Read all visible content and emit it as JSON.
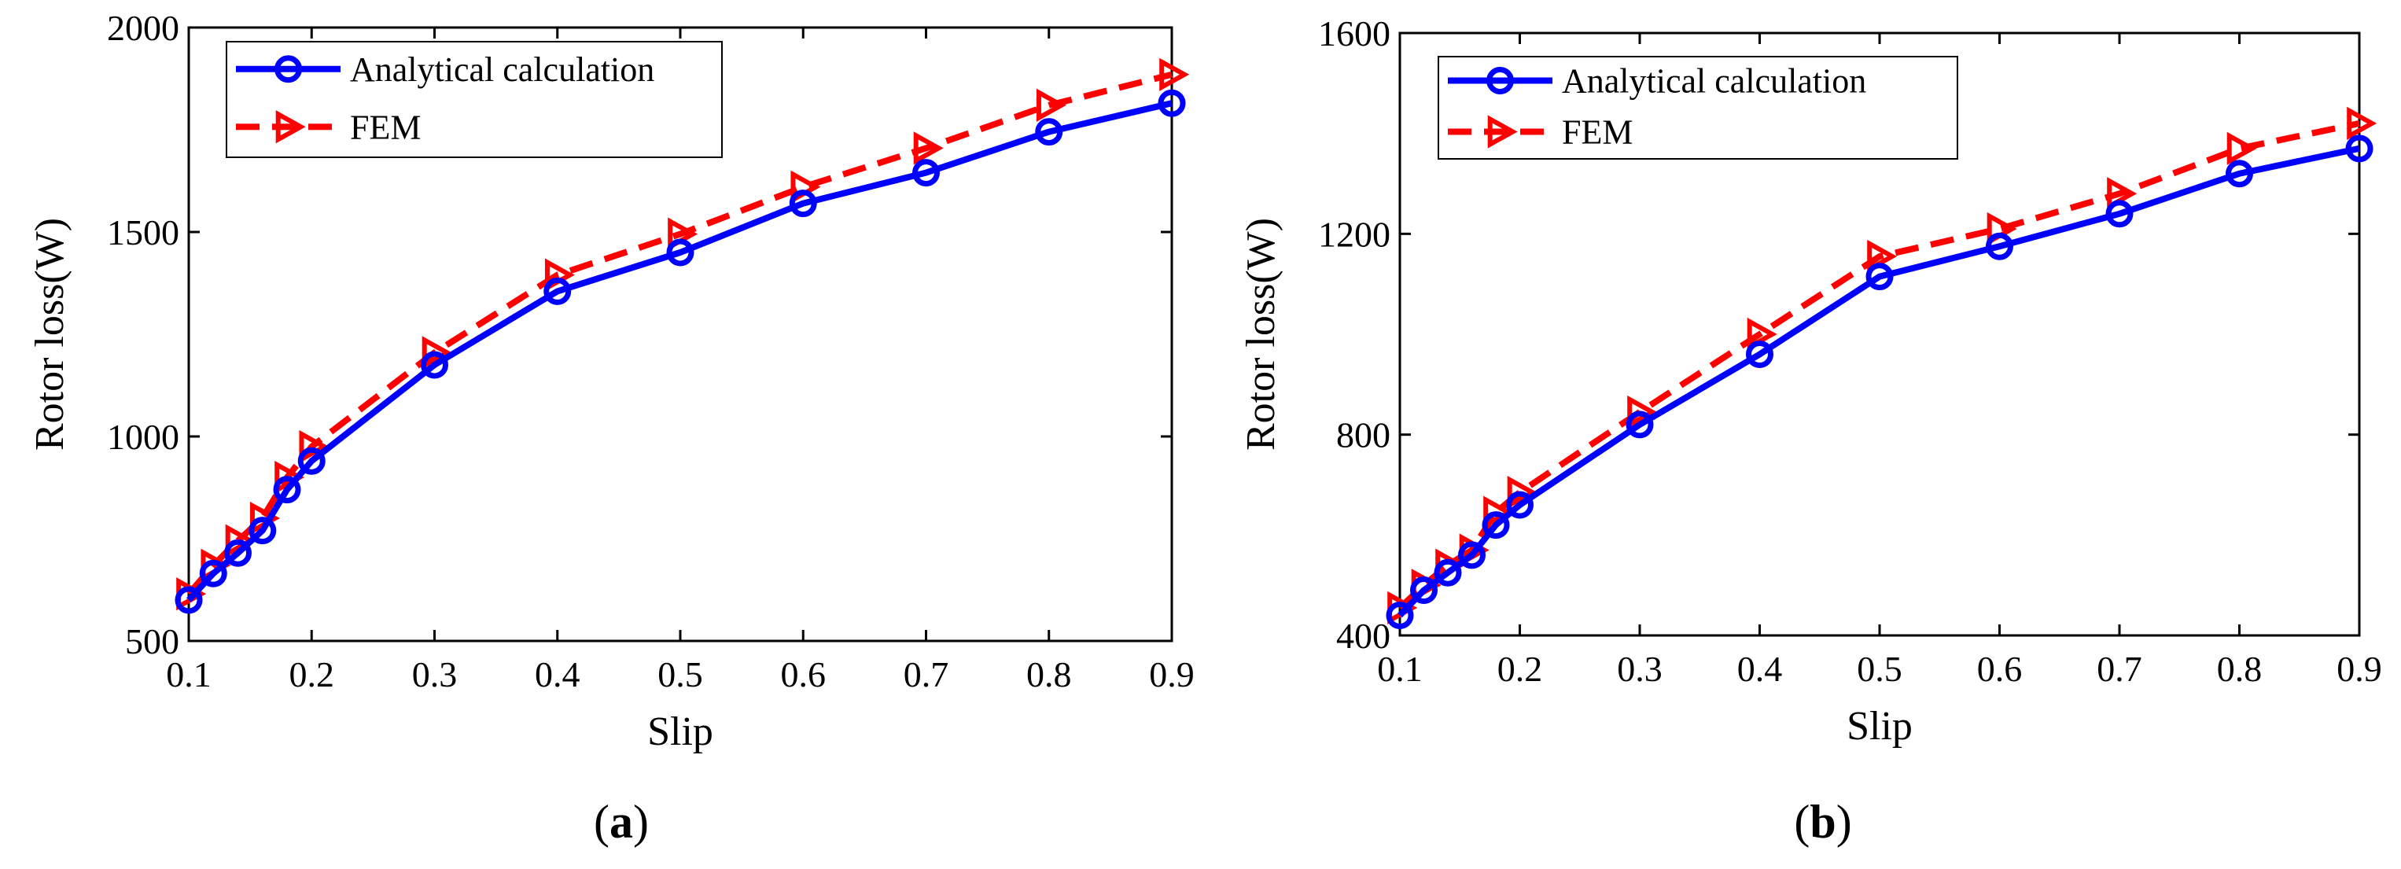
{
  "figure": {
    "panel_labels": [
      {
        "open": "(",
        "letter": "a",
        "close": ")"
      },
      {
        "open": "(",
        "letter": "b",
        "close": ")"
      }
    ]
  },
  "colors": {
    "analytical": "#0000FF",
    "fem": "#FF0000",
    "axis": "#000000"
  },
  "chart_data": [
    {
      "type": "line",
      "title": "",
      "xlabel": "Slip",
      "ylabel": "Rotor loss(W)",
      "xlim": [
        0.1,
        0.9
      ],
      "ylim": [
        500,
        2000
      ],
      "xticks": [
        0.1,
        0.2,
        0.3,
        0.4,
        0.5,
        0.6,
        0.7,
        0.8,
        0.9
      ],
      "xtick_labels": [
        "0.1",
        "0.2",
        "0.3",
        "0.4",
        "0.5",
        "0.6",
        "0.7",
        "0.8",
        "0.9"
      ],
      "yticks": [
        500,
        1000,
        1500,
        2000
      ],
      "ytick_labels": [
        "500",
        "1000",
        "1500",
        "2000"
      ],
      "legend_position": "top-left",
      "series": [
        {
          "name": "Analytical calculation",
          "marker": "circle",
          "line": "solid",
          "x": [
            0.1,
            0.12,
            0.14,
            0.16,
            0.18,
            0.2,
            0.3,
            0.4,
            0.5,
            0.6,
            0.7,
            0.8,
            0.9
          ],
          "y": [
            600,
            665,
            715,
            770,
            870,
            940,
            1175,
            1355,
            1450,
            1570,
            1645,
            1745,
            1815
          ]
        },
        {
          "name": "FEM",
          "marker": "triangle-right",
          "line": "dashed",
          "x": [
            0.1,
            0.12,
            0.14,
            0.16,
            0.18,
            0.2,
            0.3,
            0.4,
            0.5,
            0.6,
            0.7,
            0.8,
            0.9
          ],
          "y": [
            615,
            685,
            745,
            800,
            900,
            975,
            1205,
            1395,
            1495,
            1610,
            1705,
            1810,
            1885
          ]
        }
      ]
    },
    {
      "type": "line",
      "title": "",
      "xlabel": "Slip",
      "ylabel": "Rotor loss(W)",
      "xlim": [
        0.1,
        0.9
      ],
      "ylim": [
        400,
        1600
      ],
      "xticks": [
        0.1,
        0.2,
        0.3,
        0.4,
        0.5,
        0.6,
        0.7,
        0.8,
        0.9
      ],
      "xtick_labels": [
        "0.1",
        "0.2",
        "0.3",
        "0.4",
        "0.5",
        "0.6",
        "0.7",
        "0.8",
        "0.9"
      ],
      "yticks": [
        400,
        800,
        1200,
        1600
      ],
      "ytick_labels": [
        "400",
        "800",
        "1200",
        "1600"
      ],
      "legend_position": "top-left",
      "series": [
        {
          "name": "Analytical calculation",
          "marker": "circle",
          "line": "solid",
          "x": [
            0.1,
            0.12,
            0.14,
            0.16,
            0.18,
            0.2,
            0.3,
            0.4,
            0.5,
            0.6,
            0.7,
            0.8,
            0.9
          ],
          "y": [
            440,
            490,
            525,
            560,
            620,
            660,
            820,
            960,
            1115,
            1175,
            1240,
            1320,
            1370
          ]
        },
        {
          "name": "FEM",
          "marker": "triangle-right",
          "line": "dashed",
          "x": [
            0.1,
            0.12,
            0.14,
            0.16,
            0.18,
            0.2,
            0.3,
            0.4,
            0.5,
            0.6,
            0.7,
            0.8,
            0.9
          ],
          "y": [
            455,
            500,
            540,
            570,
            645,
            685,
            845,
            1000,
            1155,
            1210,
            1280,
            1370,
            1420
          ]
        }
      ]
    }
  ]
}
